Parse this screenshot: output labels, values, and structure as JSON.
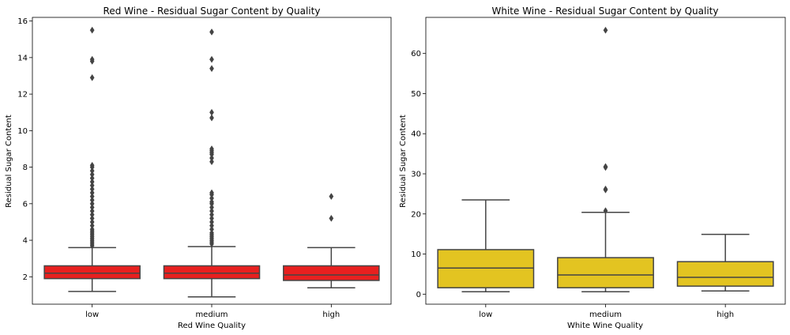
{
  "chart_data": [
    {
      "type": "box",
      "title": "Red Wine - Residual Sugar Content by Quality",
      "xlabel": "Red Wine Quality",
      "ylabel": "Residual Sugar Content",
      "categories": [
        "low",
        "medium",
        "high"
      ],
      "ylim": [
        0.5,
        16.2
      ],
      "yticks": [
        2,
        4,
        6,
        8,
        10,
        12,
        14,
        16
      ],
      "grid": false,
      "color": "#e8201f",
      "boxes": [
        {
          "category": "low",
          "whisker_low": 1.2,
          "q1": 1.9,
          "median": 2.2,
          "q3": 2.6,
          "whisker_high": 3.6,
          "outliers": [
            3.7,
            3.8,
            3.9,
            4.0,
            4.1,
            4.2,
            4.3,
            4.4,
            4.5,
            4.6,
            4.8,
            5.0,
            5.2,
            5.4,
            5.6,
            5.8,
            6.0,
            6.2,
            6.4,
            6.6,
            6.8,
            7.0,
            7.2,
            7.4,
            7.6,
            7.8,
            8.0,
            8.1,
            12.9,
            13.8,
            13.9,
            15.5
          ]
        },
        {
          "category": "medium",
          "whisker_low": 0.9,
          "q1": 1.9,
          "median": 2.2,
          "q3": 2.6,
          "whisker_high": 3.65,
          "outliers": [
            3.8,
            3.9,
            4.0,
            4.1,
            4.2,
            4.3,
            4.4,
            4.6,
            4.8,
            5.0,
            5.2,
            5.4,
            5.6,
            5.8,
            6.0,
            6.1,
            6.3,
            6.5,
            6.6,
            8.3,
            8.5,
            8.7,
            8.8,
            8.9,
            9.0,
            10.7,
            11.0,
            13.4,
            13.9,
            15.4
          ]
        },
        {
          "category": "high",
          "whisker_low": 1.4,
          "q1": 1.8,
          "median": 2.1,
          "q3": 2.6,
          "whisker_high": 3.6,
          "outliers": [
            5.2,
            6.4
          ]
        }
      ]
    },
    {
      "type": "box",
      "title": "White Wine - Residual Sugar Content by Quality",
      "xlabel": "White Wine Quality",
      "ylabel": "Residual Sugar Content",
      "categories": [
        "low",
        "medium",
        "high"
      ],
      "ylim": [
        -2.5,
        69
      ],
      "yticks": [
        0,
        10,
        20,
        30,
        40,
        50,
        60
      ],
      "grid": false,
      "color": "#e3c421",
      "boxes": [
        {
          "category": "low",
          "whisker_low": 0.6,
          "q1": 1.6,
          "median": 6.5,
          "q3": 11.1,
          "whisker_high": 23.5,
          "outliers": []
        },
        {
          "category": "medium",
          "whisker_low": 0.6,
          "q1": 1.6,
          "median": 4.8,
          "q3": 9.1,
          "whisker_high": 20.4,
          "outliers": [
            20.8,
            26.0,
            26.2,
            31.6,
            31.8,
            65.8
          ]
        },
        {
          "category": "high",
          "whisker_low": 0.8,
          "q1": 2.0,
          "median": 4.2,
          "q3": 8.1,
          "whisker_high": 14.9,
          "outliers": []
        }
      ]
    }
  ]
}
